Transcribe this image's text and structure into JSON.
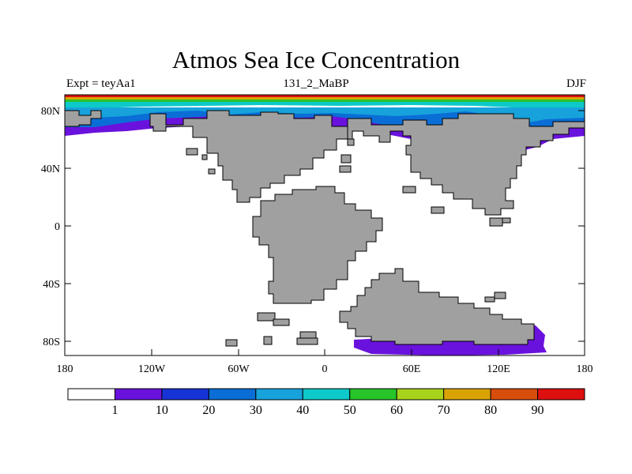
{
  "title": "Atmos Sea Ice Concentration",
  "subtitle_left": "Expt = teyAa1",
  "subtitle_center": "131_2_MaBP",
  "subtitle_right": "DJF",
  "y_ticks": [
    "80N",
    "40N",
    "0",
    "40S",
    "80S"
  ],
  "x_ticks": [
    "180",
    "120W",
    "60W",
    "0",
    "60E",
    "120E",
    "180"
  ],
  "colorbar": {
    "colors": [
      "#ffffff",
      "#6a12dd",
      "#1633d6",
      "#0a6ed6",
      "#17a2db",
      "#0ec9c9",
      "#27c42a",
      "#a8d31c",
      "#d9a306",
      "#d94d0c",
      "#dd0f0f"
    ],
    "labels": [
      "1",
      "10",
      "20",
      "30",
      "40",
      "50",
      "60",
      "70",
      "80",
      "90"
    ]
  },
  "colors": {
    "land": "#a0a0a0",
    "ocean": "#ffffff"
  },
  "chart_data": {
    "type": "heatmap",
    "title": "Atmos Sea Ice Concentration",
    "variable": "sea ice concentration",
    "season": "DJF",
    "experiment": "teyAa1",
    "period": "131_2_MaBP",
    "xlim": [
      -180,
      180
    ],
    "ylim": [
      -90,
      90
    ],
    "levels": [
      1,
      10,
      20,
      30,
      40,
      50,
      60,
      70,
      80,
      90
    ],
    "x_tick_labels": [
      "180",
      "120W",
      "60W",
      "0",
      "60E",
      "120E",
      "180"
    ],
    "y_tick_labels": [
      "80N",
      "40N",
      "0",
      "40S",
      "80S"
    ]
  }
}
